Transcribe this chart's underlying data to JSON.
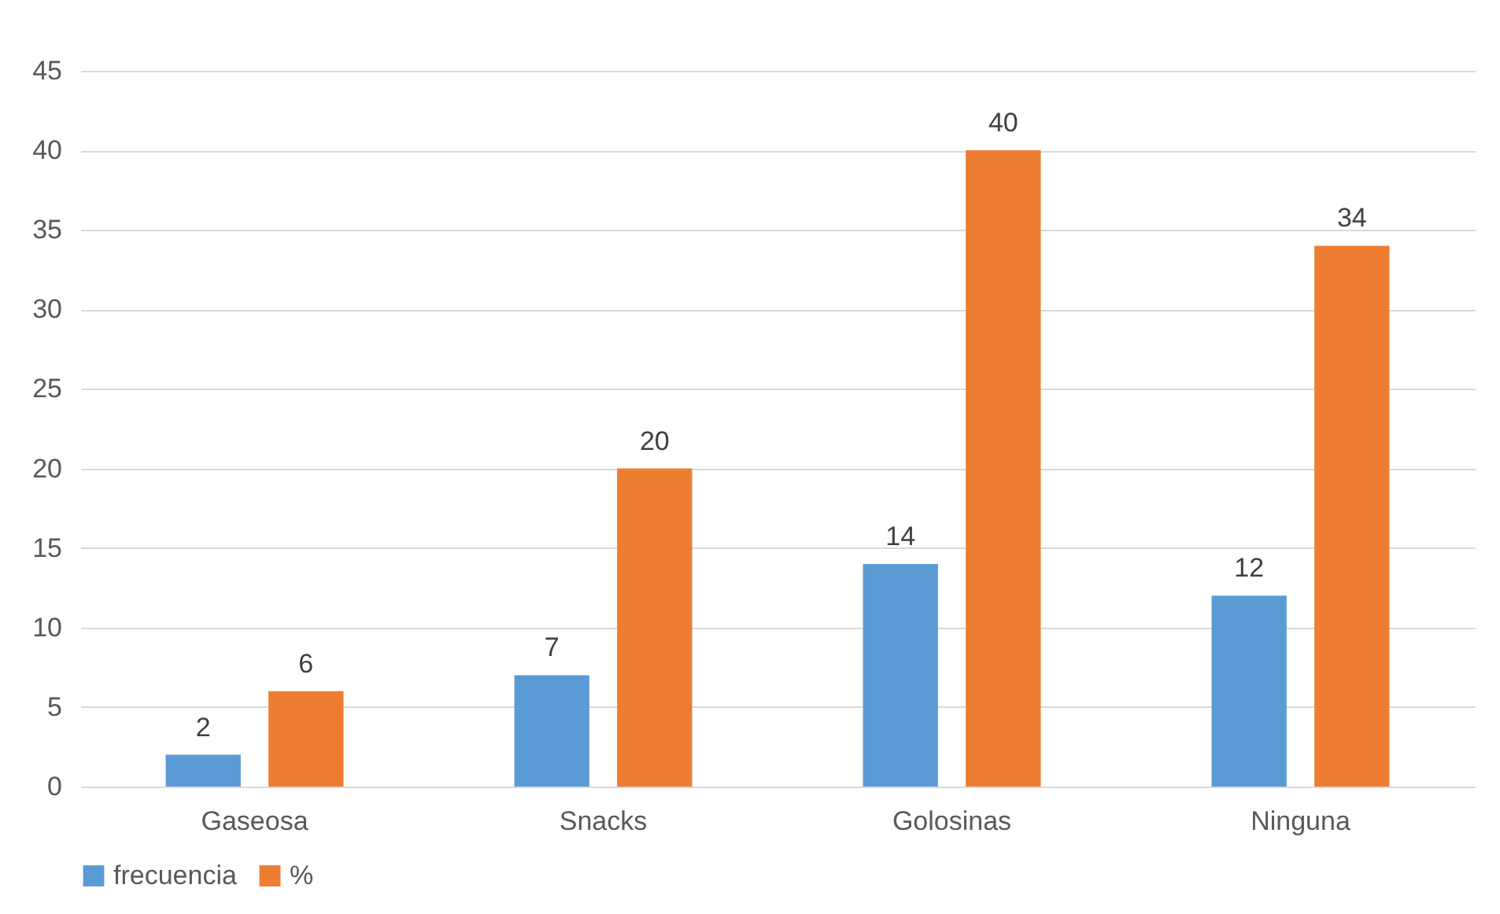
{
  "chart_data": {
    "type": "bar",
    "categories": [
      "Gaseosa",
      "Snacks",
      "Golosinas",
      "Ninguna"
    ],
    "series": [
      {
        "name": "frecuencia",
        "color": "#5b9bd5",
        "values": [
          2,
          7,
          14,
          12
        ]
      },
      {
        "name": "%",
        "color": "#ed7d31",
        "values": [
          6,
          20,
          40,
          34
        ]
      }
    ],
    "ylim": [
      0,
      45
    ],
    "yticks": [
      0,
      5,
      10,
      15,
      20,
      25,
      30,
      35,
      40,
      45
    ],
    "grid": "y",
    "legend": "bottom",
    "data_labels": true
  }
}
